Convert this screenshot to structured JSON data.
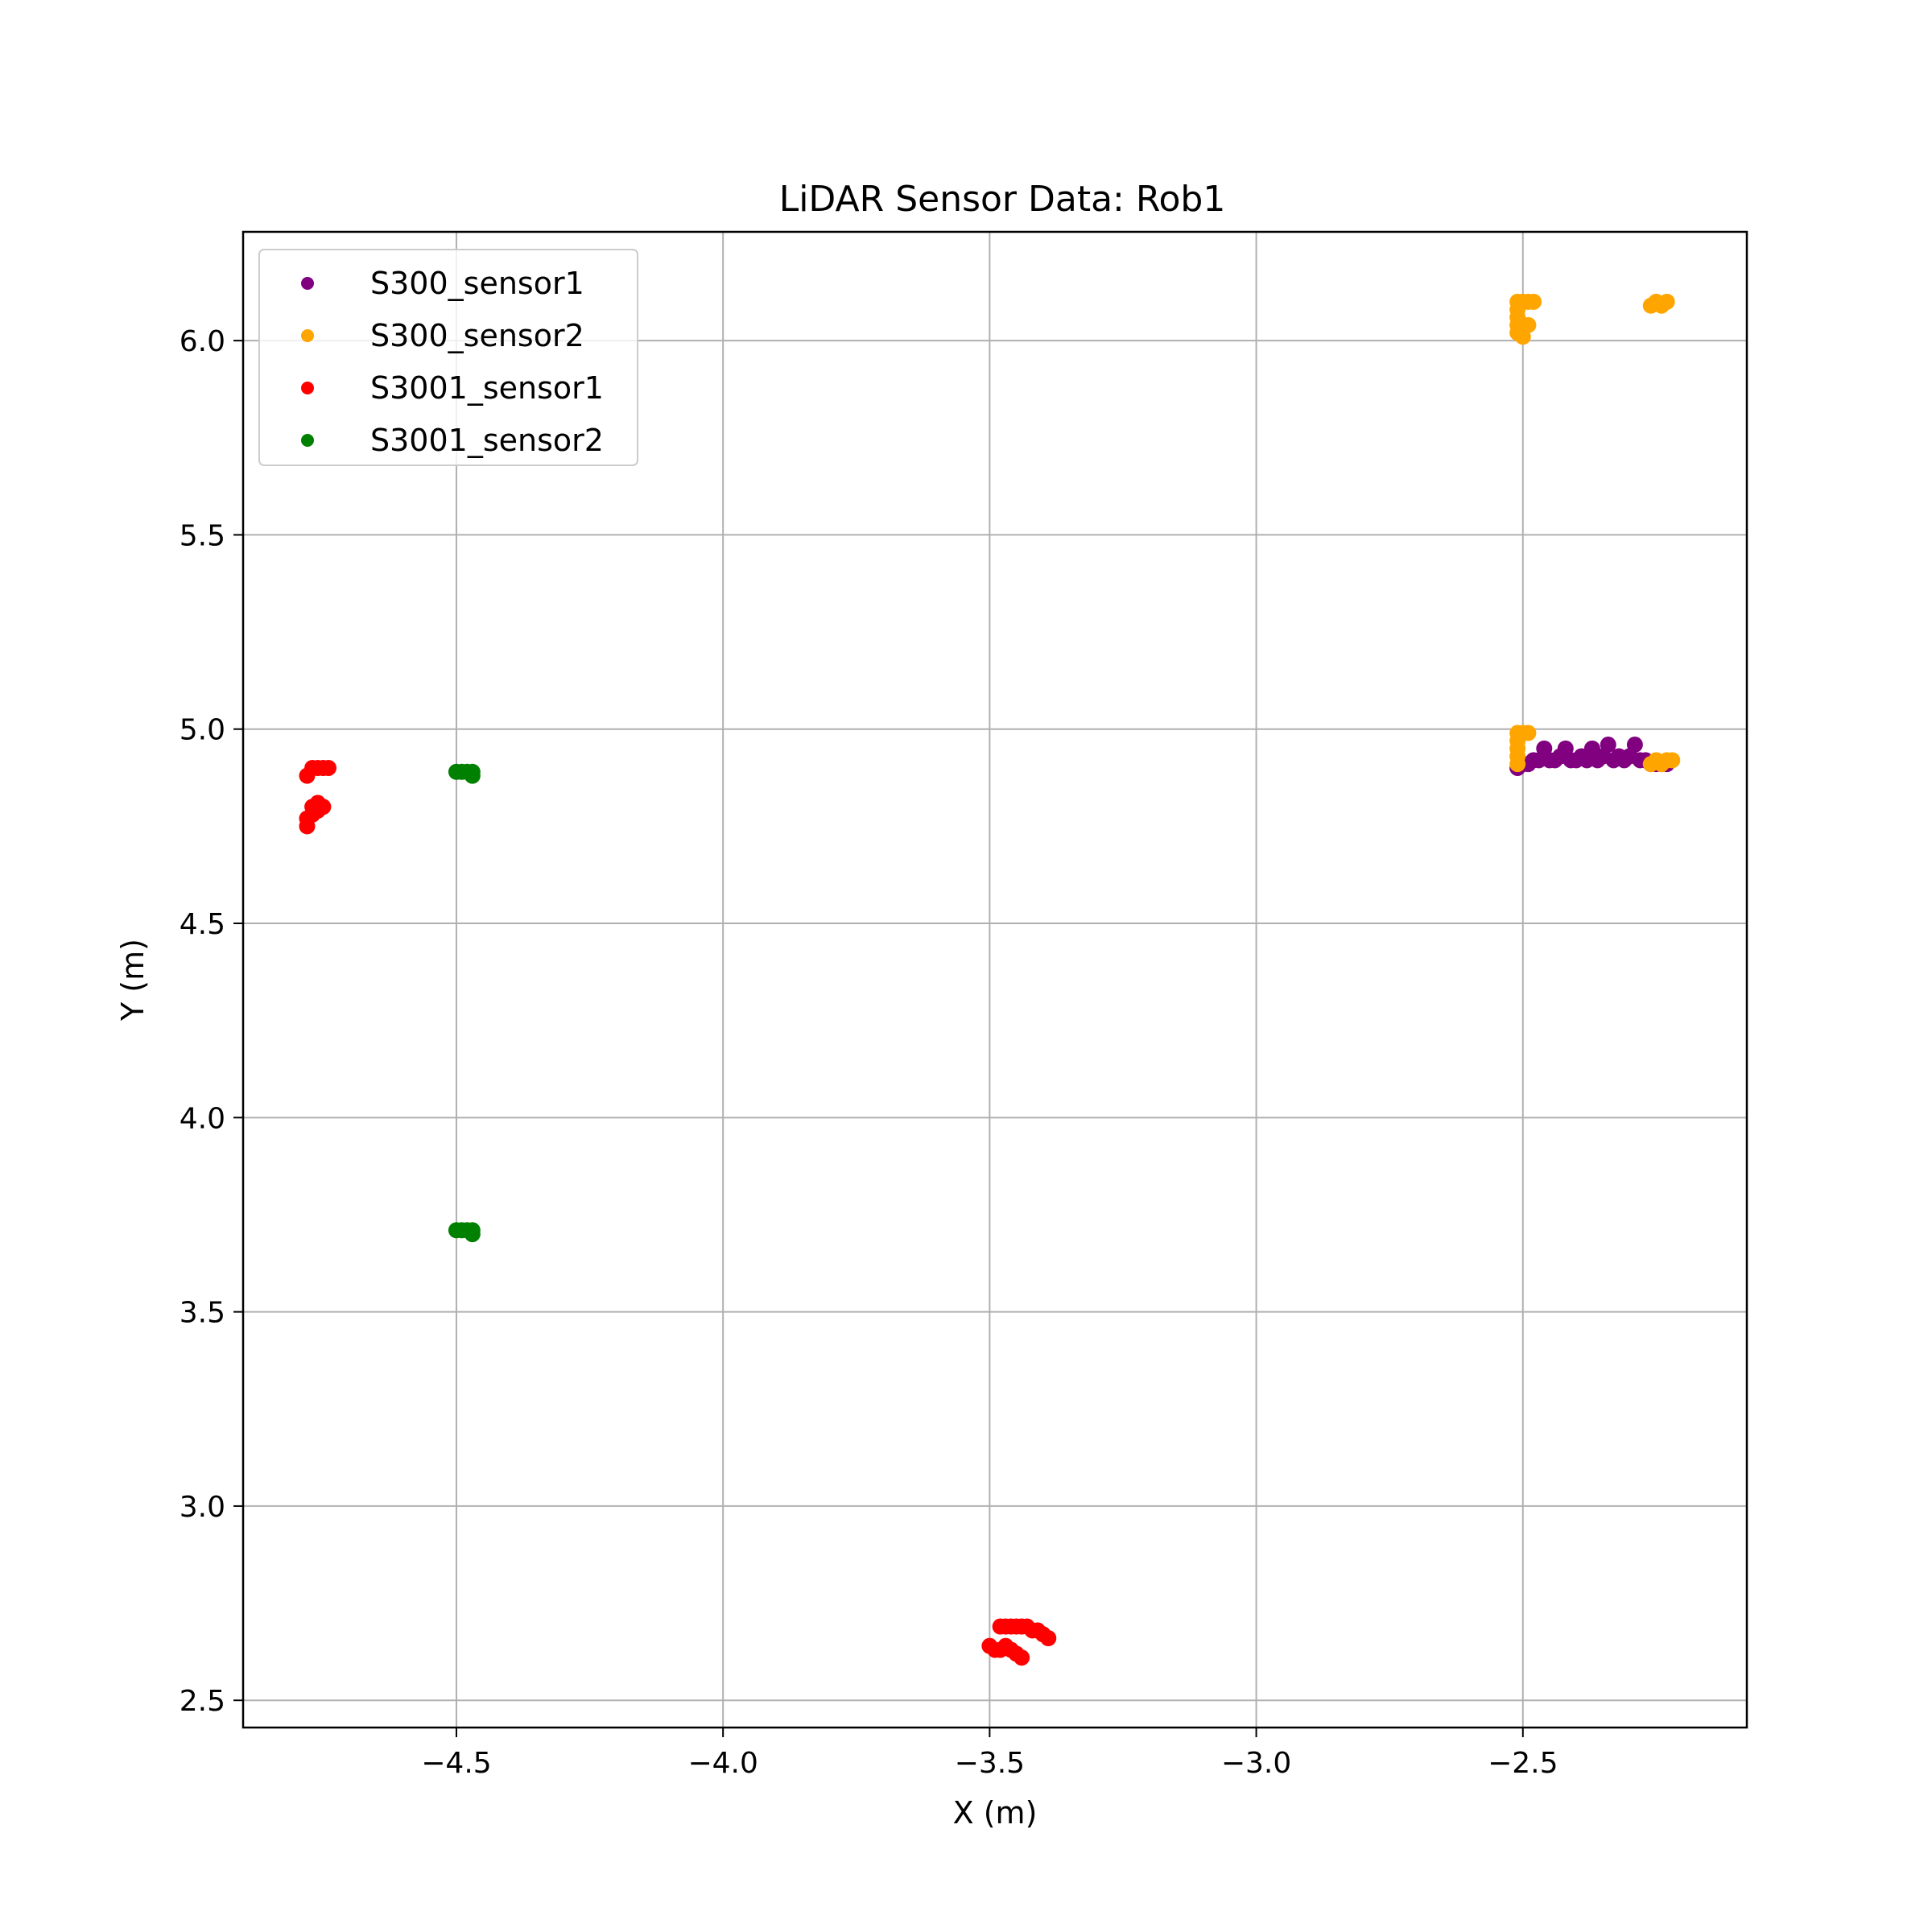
{
  "chart_data": {
    "type": "scatter",
    "title": "LiDAR Sensor Data: Rob1",
    "xlabel": "X (m)",
    "ylabel": "Y (m)",
    "xlim": [
      -4.9,
      -2.08
    ],
    "ylim": [
      2.43,
      6.28
    ],
    "xticks": [
      -4.5,
      -4.0,
      -3.5,
      -3.0,
      -2.5
    ],
    "xtick_labels": [
      "−4.5",
      "−4.0",
      "−3.5",
      "−3.0",
      "−2.5"
    ],
    "yticks": [
      2.5,
      3.0,
      3.5,
      4.0,
      4.5,
      5.0,
      5.5,
      6.0
    ],
    "ytick_labels": [
      "2.5",
      "3.0",
      "3.5",
      "4.0",
      "4.5",
      "5.0",
      "5.5",
      "6.0"
    ],
    "grid": true,
    "legend_position": "top-left",
    "series": [
      {
        "name": "S300_sensor1",
        "color": "#800080",
        "points": [
          [
            -2.51,
            4.9
          ],
          [
            -2.5,
            4.91
          ],
          [
            -2.49,
            4.91
          ],
          [
            -2.48,
            4.92
          ],
          [
            -2.47,
            4.92
          ],
          [
            -2.46,
            4.95
          ],
          [
            -2.45,
            4.92
          ],
          [
            -2.44,
            4.92
          ],
          [
            -2.43,
            4.93
          ],
          [
            -2.42,
            4.95
          ],
          [
            -2.41,
            4.92
          ],
          [
            -2.4,
            4.92
          ],
          [
            -2.39,
            4.93
          ],
          [
            -2.38,
            4.92
          ],
          [
            -2.37,
            4.95
          ],
          [
            -2.36,
            4.92
          ],
          [
            -2.35,
            4.93
          ],
          [
            -2.34,
            4.96
          ],
          [
            -2.33,
            4.92
          ],
          [
            -2.32,
            4.93
          ],
          [
            -2.31,
            4.92
          ],
          [
            -2.3,
            4.93
          ],
          [
            -2.29,
            4.96
          ],
          [
            -2.28,
            4.92
          ],
          [
            -2.27,
            4.92
          ],
          [
            -2.26,
            4.91
          ],
          [
            -2.25,
            4.91
          ],
          [
            -2.24,
            4.91
          ],
          [
            -2.23,
            4.91
          ]
        ]
      },
      {
        "name": "S300_sensor2",
        "color": "#ffa500",
        "points": [
          [
            -2.51,
            6.1
          ],
          [
            -2.51,
            6.08
          ],
          [
            -2.51,
            6.06
          ],
          [
            -2.51,
            6.04
          ],
          [
            -2.51,
            6.02
          ],
          [
            -2.5,
            6.01
          ],
          [
            -2.5,
            6.1
          ],
          [
            -2.49,
            6.04
          ],
          [
            -2.49,
            6.1
          ],
          [
            -2.48,
            6.1
          ],
          [
            -2.26,
            6.09
          ],
          [
            -2.25,
            6.1
          ],
          [
            -2.24,
            6.09
          ],
          [
            -2.23,
            6.1
          ],
          [
            -2.51,
            4.99
          ],
          [
            -2.51,
            4.97
          ],
          [
            -2.51,
            4.95
          ],
          [
            -2.51,
            4.93
          ],
          [
            -2.51,
            4.91
          ],
          [
            -2.5,
            4.99
          ],
          [
            -2.49,
            4.99
          ],
          [
            -2.26,
            4.91
          ],
          [
            -2.25,
            4.92
          ],
          [
            -2.24,
            4.91
          ],
          [
            -2.23,
            4.92
          ],
          [
            -2.22,
            4.92
          ]
        ]
      },
      {
        "name": "S3001_sensor1",
        "color": "#ff0000",
        "points": [
          [
            -4.78,
            4.88
          ],
          [
            -4.77,
            4.9
          ],
          [
            -4.76,
            4.9
          ],
          [
            -4.75,
            4.9
          ],
          [
            -4.74,
            4.9
          ],
          [
            -4.78,
            4.75
          ],
          [
            -4.78,
            4.77
          ],
          [
            -4.77,
            4.78
          ],
          [
            -4.77,
            4.8
          ],
          [
            -4.76,
            4.79
          ],
          [
            -4.76,
            4.81
          ],
          [
            -4.75,
            4.8
          ],
          [
            -3.5,
            2.64
          ],
          [
            -3.49,
            2.63
          ],
          [
            -3.48,
            2.63
          ],
          [
            -3.47,
            2.64
          ],
          [
            -3.46,
            2.63
          ],
          [
            -3.45,
            2.62
          ],
          [
            -3.44,
            2.61
          ],
          [
            -3.48,
            2.69
          ],
          [
            -3.47,
            2.69
          ],
          [
            -3.46,
            2.69
          ],
          [
            -3.45,
            2.69
          ],
          [
            -3.44,
            2.69
          ],
          [
            -3.43,
            2.69
          ],
          [
            -3.42,
            2.68
          ],
          [
            -3.41,
            2.68
          ],
          [
            -3.4,
            2.67
          ],
          [
            -3.39,
            2.66
          ]
        ]
      },
      {
        "name": "S3001_sensor2",
        "color": "#008000",
        "points": [
          [
            -4.5,
            4.89
          ],
          [
            -4.49,
            4.89
          ],
          [
            -4.48,
            4.89
          ],
          [
            -4.47,
            4.89
          ],
          [
            -4.47,
            4.88
          ],
          [
            -4.5,
            3.71
          ],
          [
            -4.49,
            3.71
          ],
          [
            -4.48,
            3.71
          ],
          [
            -4.47,
            3.71
          ],
          [
            -4.47,
            3.7
          ]
        ]
      }
    ]
  }
}
